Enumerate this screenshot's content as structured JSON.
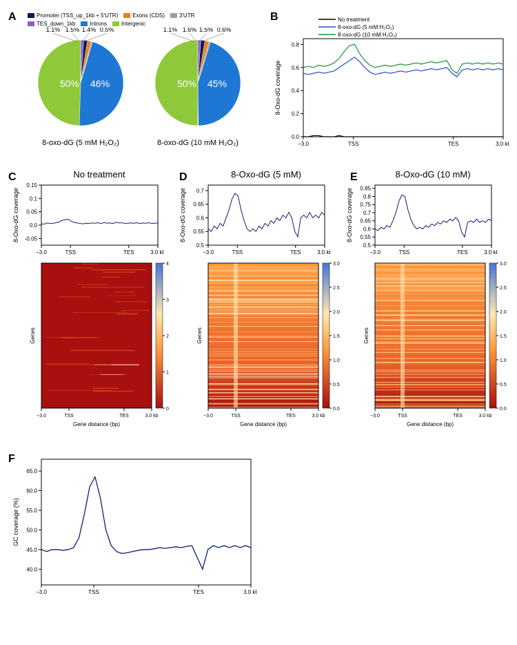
{
  "colors": {
    "promoter": "#0d1a5a",
    "exons": "#ef7d1a",
    "utr3": "#9e9e9e",
    "tes": "#8e5cc9",
    "introns": "#1f77d4",
    "intergenic": "#8fc93a",
    "black": "#000000",
    "blue": "#1f4fd6",
    "green": "#1a8f3a",
    "navy": "#0d1a7a",
    "axis": "#000000",
    "heatmap_low": "#a80f0f",
    "heatmap_mid": "#ff9a3c",
    "heatmap_midhigh": "#ffe8b0",
    "heatmap_high": "#4a74d4"
  },
  "panelA": {
    "legend_items": [
      {
        "key": "promoter",
        "label": "Promoter (TSS_up_1kb + 5'UTR)"
      },
      {
        "key": "exons",
        "label": "Exons (CDS)"
      },
      {
        "key": "utr3",
        "label": "3'UTR"
      },
      {
        "key": "tes",
        "label": "TES_down_1kb"
      },
      {
        "key": "introns",
        "label": "Introns"
      },
      {
        "key": "intergenic",
        "label": "Intergenic"
      }
    ],
    "pies": [
      {
        "caption": "8-oxo-dG (5 mM H₂O₂)",
        "slices": [
          {
            "key": "intergenic",
            "pct": 50
          },
          {
            "key": "tes",
            "pct": 1.1
          },
          {
            "key": "promoter",
            "pct": 1.5
          },
          {
            "key": "exons",
            "pct": 1.4
          },
          {
            "key": "utr3",
            "pct": 0.5
          },
          {
            "key": "introns",
            "pct": 46
          }
        ],
        "callouts": [
          {
            "text": "1.1%"
          },
          {
            "text": "1.5%"
          },
          {
            "text": "1.4%"
          },
          {
            "text": "0.5%"
          }
        ],
        "big": [
          {
            "text": "50%"
          },
          {
            "text": "46%"
          }
        ]
      },
      {
        "caption": "8-oxo-dG (10 mM H₂O₂)",
        "slices": [
          {
            "key": "intergenic",
            "pct": 50
          },
          {
            "key": "tes",
            "pct": 1.1
          },
          {
            "key": "promoter",
            "pct": 1.6
          },
          {
            "key": "exons",
            "pct": 1.5
          },
          {
            "key": "utr3",
            "pct": 0.6
          },
          {
            "key": "introns",
            "pct": 45
          }
        ],
        "callouts": [
          {
            "text": "1.1%"
          },
          {
            "text": "1.6%"
          },
          {
            "text": "1.5%"
          },
          {
            "text": "0.6%"
          }
        ],
        "big": [
          {
            "text": "50%"
          },
          {
            "text": "45%"
          }
        ]
      }
    ]
  },
  "panelB": {
    "legend": [
      {
        "key": "black",
        "label": "No treatment"
      },
      {
        "key": "blue",
        "label": "8-oxo-dG (5 mM H₂O₂)"
      },
      {
        "key": "green",
        "label": "8-oxo-dG (10 mM H₂O₂)"
      }
    ],
    "ylabel": "8-Oxo-dG coverage",
    "ylim": [
      0,
      0.85
    ],
    "yticks": [
      0.0,
      0.2,
      0.4,
      0.6,
      0.8
    ],
    "xticks": [
      "−3.0",
      "TSS",
      "TES",
      "3.0 kb"
    ],
    "series": {
      "black": [
        0.0,
        0.0,
        0.01,
        0.01,
        0.0,
        0.0,
        0.0,
        0.01,
        0.0,
        0.0,
        0.0,
        0.0,
        0.0,
        0.0,
        0.0,
        0.0,
        0.0,
        0.0,
        0.0,
        0.0,
        0.0,
        0.0,
        0.0,
        0.0,
        0.0,
        0.0,
        0.0,
        0.0,
        0.0,
        0.0,
        0.0,
        0.0,
        0.0,
        0.0,
        0.0,
        0.0,
        0.0,
        0.0,
        0.0,
        0.0
      ],
      "blue": [
        0.55,
        0.54,
        0.55,
        0.56,
        0.55,
        0.56,
        0.57,
        0.6,
        0.63,
        0.66,
        0.69,
        0.65,
        0.6,
        0.56,
        0.54,
        0.55,
        0.56,
        0.55,
        0.56,
        0.57,
        0.56,
        0.57,
        0.58,
        0.57,
        0.58,
        0.59,
        0.58,
        0.59,
        0.6,
        0.55,
        0.52,
        0.58,
        0.59,
        0.58,
        0.59,
        0.58,
        0.59,
        0.58,
        0.59,
        0.58
      ],
      "green": [
        0.6,
        0.61,
        0.6,
        0.62,
        0.61,
        0.62,
        0.64,
        0.68,
        0.74,
        0.79,
        0.8,
        0.72,
        0.66,
        0.62,
        0.6,
        0.61,
        0.62,
        0.61,
        0.62,
        0.63,
        0.62,
        0.63,
        0.64,
        0.63,
        0.64,
        0.65,
        0.64,
        0.65,
        0.66,
        0.58,
        0.55,
        0.63,
        0.64,
        0.63,
        0.64,
        0.63,
        0.64,
        0.63,
        0.64,
        0.63
      ]
    }
  },
  "panelsCDE": {
    "xlabel": "Gene distance (bp)",
    "ylabel": "8-Oxo-dG coverage",
    "hm_ylabel": "Genes",
    "xticks": [
      "−3.0",
      "TSS",
      "TES",
      "3.0 kb"
    ],
    "items": [
      {
        "id": "C",
        "title": "No treatment",
        "ylim": [
          -0.075,
          0.15
        ],
        "yticks": [
          -0.05,
          0.0,
          0.05,
          0.1,
          0.15
        ],
        "series": [
          0.005,
          0.004,
          0.008,
          0.006,
          0.007,
          0.009,
          0.012,
          0.018,
          0.02,
          0.022,
          0.015,
          0.01,
          0.008,
          0.006,
          0.005,
          0.007,
          0.006,
          0.008,
          0.007,
          0.009,
          0.006,
          0.01,
          0.007,
          0.008,
          0.006,
          0.011,
          0.008,
          0.009,
          0.006,
          0.007,
          0.008,
          0.007,
          0.009,
          0.006,
          0.008,
          0.007,
          0.009,
          0.006,
          0.007,
          0.008
        ],
        "cb_ticks": [
          0,
          1,
          2,
          3,
          4
        ]
      },
      {
        "id": "D",
        "title": "8-Oxo-dG (5 mM)",
        "ylim": [
          0.5,
          0.72
        ],
        "yticks": [
          0.5,
          0.55,
          0.6,
          0.65,
          0.7
        ],
        "series": [
          0.56,
          0.55,
          0.57,
          0.56,
          0.58,
          0.57,
          0.6,
          0.63,
          0.67,
          0.69,
          0.68,
          0.63,
          0.59,
          0.56,
          0.55,
          0.56,
          0.55,
          0.57,
          0.56,
          0.58,
          0.57,
          0.59,
          0.58,
          0.6,
          0.59,
          0.61,
          0.6,
          0.62,
          0.6,
          0.55,
          0.53,
          0.6,
          0.61,
          0.6,
          0.62,
          0.6,
          0.61,
          0.6,
          0.62,
          0.61
        ],
        "cb_ticks": [
          0.0,
          0.5,
          1.0,
          1.5,
          2.0,
          2.5,
          3.0
        ]
      },
      {
        "id": "E",
        "title": "8-Oxo-dG (10 mM)",
        "ylim": [
          0.5,
          0.87
        ],
        "yticks": [
          0.5,
          0.55,
          0.6,
          0.65,
          0.7,
          0.75,
          0.8,
          0.85
        ],
        "series": [
          0.6,
          0.59,
          0.61,
          0.6,
          0.62,
          0.61,
          0.65,
          0.7,
          0.77,
          0.81,
          0.8,
          0.72,
          0.66,
          0.62,
          0.6,
          0.61,
          0.6,
          0.62,
          0.61,
          0.63,
          0.62,
          0.64,
          0.63,
          0.65,
          0.64,
          0.66,
          0.65,
          0.67,
          0.65,
          0.58,
          0.55,
          0.64,
          0.65,
          0.64,
          0.66,
          0.64,
          0.65,
          0.64,
          0.66,
          0.65
        ],
        "cb_ticks": [
          0.0,
          0.5,
          1.0,
          1.5,
          2.0,
          2.5,
          3.0
        ]
      }
    ]
  },
  "panelF": {
    "ylabel": "GC coverage (%)",
    "ylim": [
      36,
      68
    ],
    "yticks": [
      40,
      45,
      50,
      55,
      60,
      65
    ],
    "xticks": [
      "−3.0",
      "TSS",
      "TES",
      "3.0 kb"
    ],
    "series": [
      45,
      44.5,
      45,
      45,
      44.8,
      45,
      45.5,
      48,
      54,
      61,
      63.5,
      58,
      50,
      46,
      44.5,
      44,
      44.2,
      44.5,
      44.8,
      45,
      45,
      45.2,
      45.5,
      45.3,
      45.5,
      45.7,
      45.5,
      45.8,
      46,
      43,
      40,
      45,
      46,
      45.5,
      46,
      45.5,
      46,
      45.5,
      46,
      45.5
    ]
  },
  "labels": {
    "A": "A",
    "B": "B",
    "C": "C",
    "D": "D",
    "E": "E",
    "F": "F"
  }
}
